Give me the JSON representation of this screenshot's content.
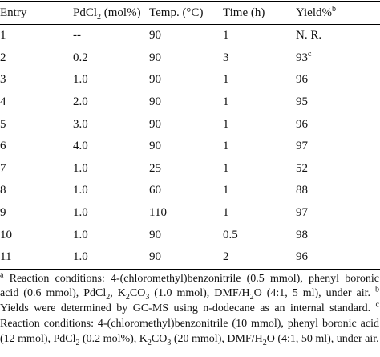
{
  "table": {
    "header": [
      [
        {
          "text": "Entry"
        }
      ],
      [
        {
          "text": "PdCl"
        },
        {
          "sub": "2"
        },
        {
          "text": " (mol%)"
        }
      ],
      [
        {
          "text": "Temp. (°C)"
        }
      ],
      [
        {
          "text": "Time (h)"
        }
      ],
      [
        {
          "text": "Yield%"
        },
        {
          "sup": "b"
        }
      ]
    ],
    "rows": [
      [
        "1",
        "--",
        "90",
        "1",
        "N. R."
      ],
      [
        "2",
        "0.2",
        "90",
        "3",
        [
          {
            "text": "93"
          },
          {
            "sup": "c"
          }
        ]
      ],
      [
        "3",
        "1.0",
        "90",
        "1",
        "96"
      ],
      [
        "4",
        "2.0",
        "90",
        "1",
        "95"
      ],
      [
        "5",
        "3.0",
        "90",
        "1",
        "96"
      ],
      [
        "6",
        "4.0",
        "90",
        "1",
        "97"
      ],
      [
        "7",
        "1.0",
        "25",
        "1",
        "52"
      ],
      [
        "8",
        "1.0",
        "60",
        "1",
        "88"
      ],
      [
        "9",
        "1.0",
        "110",
        "1",
        "97"
      ],
      [
        "10",
        "1.0",
        "90",
        "0.5",
        "98"
      ],
      [
        "11",
        "1.0",
        "90",
        "2",
        "96"
      ]
    ]
  },
  "footnote": [
    {
      "sup": "a"
    },
    {
      "text": " Reaction conditions: 4-(chloromethyl)benzonitrile (0.5 mmol), phenyl boronic acid (0.6 mmol), PdCl"
    },
    {
      "sub": "2"
    },
    {
      "text": ", K"
    },
    {
      "sub": "2"
    },
    {
      "text": "CO"
    },
    {
      "sub": "3"
    },
    {
      "text": " (1.0 mmol), DMF/H"
    },
    {
      "sub": "2"
    },
    {
      "text": "O (4:1, 5 ml), under air. "
    },
    {
      "sup": "b"
    },
    {
      "text": " Yields were determined by GC-MS using n-dodecane as an internal standard. "
    },
    {
      "sup": "c"
    },
    {
      "text": " Reaction conditions: 4-(chloromethyl)benzonitrile (10 mmol), phenyl boronic acid (12 mmol), PdCl"
    },
    {
      "sub": "2"
    },
    {
      "text": " (0.2 mol%), K"
    },
    {
      "sub": "2"
    },
    {
      "text": "CO"
    },
    {
      "sub": "3"
    },
    {
      "text": " (20 mmol), DMF/H"
    },
    {
      "sub": "2"
    },
    {
      "text": "O (4:1, 50 ml), under air."
    }
  ]
}
